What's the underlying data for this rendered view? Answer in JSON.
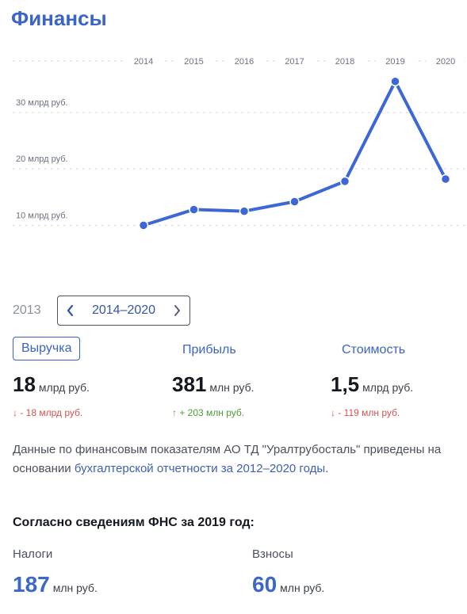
{
  "header": {
    "title": "Финансы"
  },
  "chart_data": {
    "type": "line",
    "title": "",
    "xlabel": "",
    "ylabel": "",
    "x": [
      "2014",
      "2015",
      "2016",
      "2017",
      "2018",
      "2019",
      "2020"
    ],
    "series": [
      {
        "values": [
          10.0,
          12.8,
          12.5,
          14.2,
          17.8,
          35.5,
          18.2
        ]
      }
    ],
    "y_ticks": [
      {
        "value": 10,
        "label": "10 млрд руб."
      },
      {
        "value": 20,
        "label": "20 млрд руб."
      },
      {
        "value": 30,
        "label": "30 млрд руб."
      }
    ],
    "ylim": [
      5,
      38
    ],
    "grid": true,
    "colors": {
      "line": "#3d67d6",
      "grid": "#d7dae0"
    }
  },
  "period": {
    "prev_year": "2013",
    "range_label": "2014–2020"
  },
  "metrics": [
    {
      "tab": "Выручка",
      "value": "18",
      "unit": "млрд руб.",
      "delta": "↓ - 18 млрд руб.",
      "trend": "down",
      "active": true
    },
    {
      "tab": "Прибыль",
      "value": "381",
      "unit": "млн руб.",
      "delta": "↑ + 203 млн руб.",
      "trend": "up",
      "active": false
    },
    {
      "tab": "Стоимость",
      "value": "1,5",
      "unit": "млрд руб.",
      "delta": "↓ - 119 млн руб.",
      "trend": "down",
      "active": false
    }
  ],
  "description": {
    "text": "Данные по финансовым показателям АО ТД \"Уралтрубосталь\" приведены на основании ",
    "link": "бухгалтерской отчетности за 2012–2020 годы",
    "end": "."
  },
  "fns": {
    "heading": "Согласно сведениям ФНС за 2019 год:",
    "taxes": {
      "label": "Налоги",
      "value": "187",
      "unit": "млн руб."
    },
    "contributions": {
      "label": "Взносы",
      "value": "60",
      "unit": "млн руб."
    }
  }
}
